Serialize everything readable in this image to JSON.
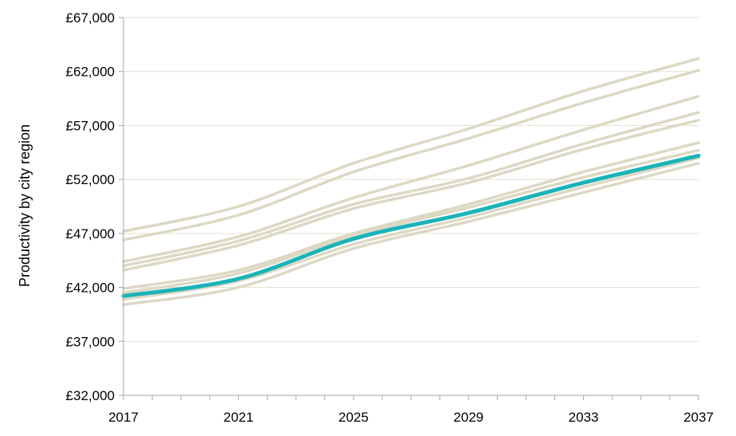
{
  "chart_data": {
    "type": "line",
    "title": "",
    "xlabel": "",
    "ylabel": "Productivity by city region",
    "xlim": [
      2017,
      2037
    ],
    "ylim": [
      32000,
      67000
    ],
    "x_ticks": [
      2017,
      2021,
      2025,
      2029,
      2033,
      2037
    ],
    "x_tick_labels": [
      "2017",
      "2021",
      "2025",
      "2029",
      "2033",
      "2037"
    ],
    "y_ticks": [
      32000,
      37000,
      42000,
      47000,
      52000,
      57000,
      62000,
      67000
    ],
    "y_tick_labels": [
      "£32,000",
      "£37,000",
      "£42,000",
      "£47,000",
      "£52,000",
      "£57,000",
      "£62,000",
      "£67,000"
    ],
    "grid": "horizontal",
    "legend": "none",
    "colors": {
      "highlight": "#1AB3B8",
      "background_series": "#DDD8C4",
      "grid": "#E3E0CF",
      "axis": "#A6A6A6"
    },
    "x": [
      2017,
      2021,
      2025,
      2029,
      2033,
      2037
    ],
    "series": [
      {
        "highlight": false,
        "values": [
          47200,
          49500,
          53500,
          56700,
          60200,
          63200
        ]
      },
      {
        "highlight": false,
        "values": [
          46400,
          48700,
          52700,
          55800,
          59100,
          62100
        ]
      },
      {
        "highlight": false,
        "values": [
          44400,
          46700,
          50300,
          53300,
          56600,
          59700
        ]
      },
      {
        "highlight": false,
        "values": [
          44000,
          46300,
          49700,
          52100,
          55300,
          58200
        ]
      },
      {
        "highlight": false,
        "values": [
          43600,
          45900,
          49300,
          51700,
          54800,
          57500
        ]
      },
      {
        "highlight": false,
        "values": [
          41900,
          43600,
          47000,
          49700,
          52700,
          55400
        ]
      },
      {
        "highlight": false,
        "values": [
          41500,
          43300,
          46800,
          49400,
          52200,
          54700
        ]
      },
      {
        "highlight": false,
        "values": [
          40900,
          42600,
          46000,
          48500,
          51300,
          54000
        ]
      },
      {
        "highlight": false,
        "values": [
          40400,
          42000,
          45600,
          48100,
          50800,
          53500
        ]
      },
      {
        "highlight": true,
        "values": [
          41200,
          42800,
          46500,
          48900,
          51700,
          54200
        ]
      }
    ]
  }
}
